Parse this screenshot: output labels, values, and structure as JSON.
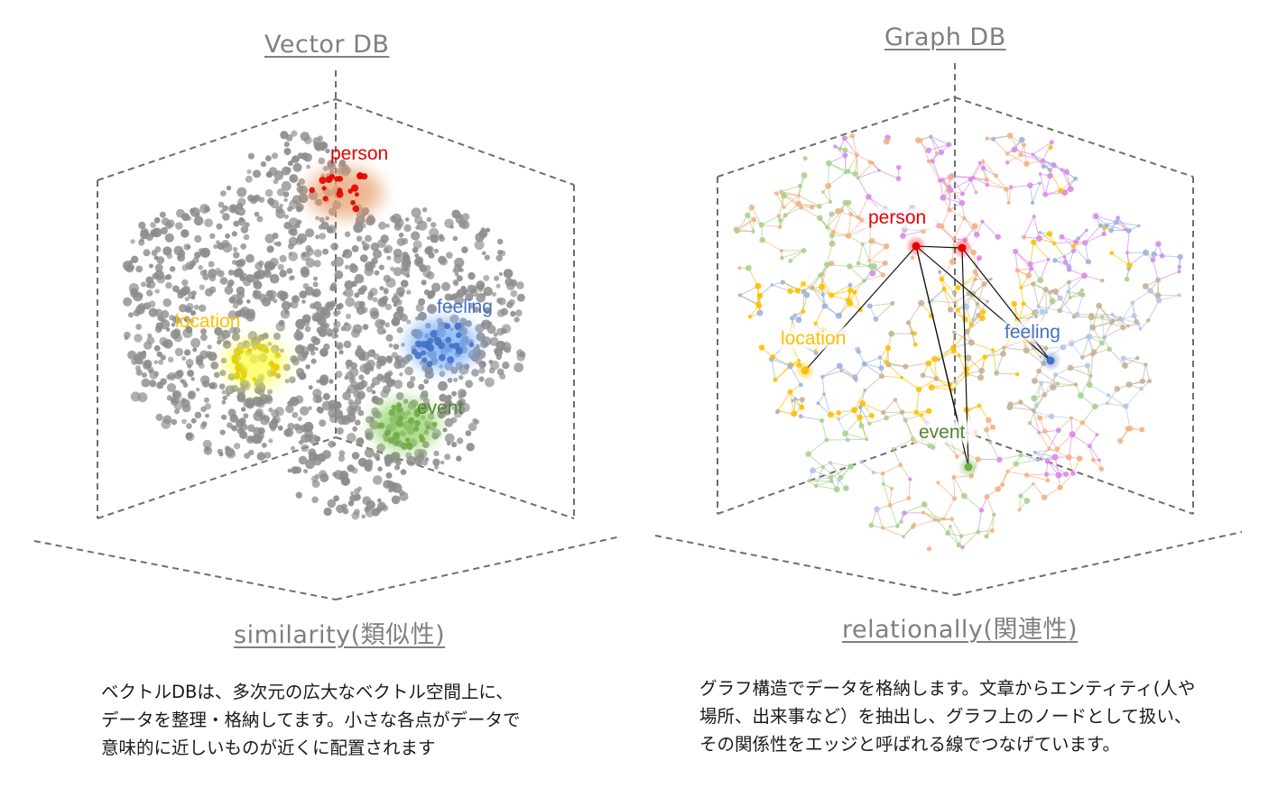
{
  "colors": {
    "person": "#e60000",
    "feeling": "#4472c4",
    "location": "#ffc000",
    "event": "#548235",
    "point": "#8c8c8c",
    "axis": "#666666"
  },
  "vector_db": {
    "title": "Vector DB",
    "footer": "similarity(類似性)",
    "clusters": {
      "person": "person",
      "feeling": "feeling",
      "location": "location",
      "event": "event"
    },
    "caption": [
      "ベクトルDBは、多次元の広大なベクトル空間上に、",
      "データを整理・格納してます。小さな各点がデータで",
      "意味的に近しいものが近くに配置されます"
    ]
  },
  "graph_db": {
    "title": "Graph DB",
    "footer": "relationally(関連性)",
    "clusters": {
      "person": "person",
      "feeling": "feeling",
      "location": "location",
      "event": "event"
    },
    "caption": [
      "グラフ構造でデータを格納します。文章からエンティティ(人や",
      "場所、出来事など）を抽出し、グラフ上のノードとして扱い、",
      "その関係性をエッジと呼ばれる線でつなげています。"
    ]
  }
}
